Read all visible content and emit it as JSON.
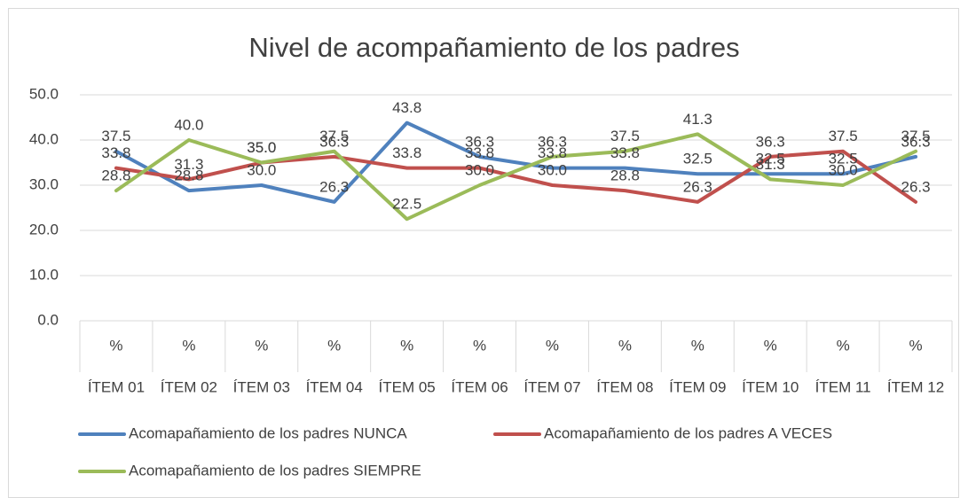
{
  "chart_data": {
    "type": "line",
    "title": "Nivel de acompañamiento de los padres",
    "categories": [
      "ÍTEM 01",
      "ÍTEM 02",
      "ÍTEM 03",
      "ÍTEM 04",
      "ÍTEM 05",
      "ÍTEM 06",
      "ÍTEM 07",
      "ÍTEM 08",
      "ÍTEM 09",
      "ÍTEM 10",
      "ÍTEM 11",
      "ÍTEM 12"
    ],
    "subcategories": [
      "%",
      "%",
      "%",
      "%",
      "%",
      "%",
      "%",
      "%",
      "%",
      "%",
      "%",
      "%"
    ],
    "series": [
      {
        "name": "Acomapañamiento de los padres NUNCA",
        "color": "#4f81bd",
        "values": [
          37.5,
          28.8,
          30,
          26.3,
          43.8,
          36.3,
          33.8,
          33.8,
          32.5,
          32.5,
          32.5,
          36.3
        ],
        "value_labels": [
          "37.5",
          "28.8",
          "30.0",
          "26.3",
          "43.8",
          "36.3",
          "33.8",
          "33.8",
          "32.5",
          "32.5",
          "32.5",
          "36.3"
        ]
      },
      {
        "name": "Acomapañamiento de los padres A VECES",
        "color": "#c0504d",
        "values": [
          33.8,
          31.3,
          35,
          36.3,
          33.8,
          33.8,
          30,
          28.8,
          26.3,
          36.3,
          37.5,
          26.3
        ],
        "value_labels": [
          "33.8",
          "31.3",
          "35.0",
          "36.3",
          "33.8",
          "33.8",
          "30.0",
          "28.8",
          "26.3",
          "36.3",
          "37.5",
          "26.3"
        ]
      },
      {
        "name": "Acomapañamiento de los padres SIEMPRE",
        "color": "#9bbb59",
        "values": [
          28.8,
          40,
          35,
          37.5,
          22.5,
          30,
          36.3,
          37.5,
          41.3,
          31.3,
          30,
          37.5
        ],
        "value_labels": [
          "28.8",
          "40.0",
          "35.0",
          "37.5",
          "22.5",
          "30.0",
          "36.3",
          "37.5",
          "41.3",
          "31.3",
          "30.0",
          "37.5"
        ]
      }
    ],
    "ylim": [
      0,
      50
    ],
    "yticks": [
      {
        "value": 0,
        "label": "0.0"
      },
      {
        "value": 10,
        "label": "10.0"
      },
      {
        "value": 20,
        "label": "20.0"
      },
      {
        "value": 30,
        "label": "30.0"
      },
      {
        "value": 40,
        "label": "40.0"
      },
      {
        "value": 50,
        "label": "50.0"
      }
    ],
    "grid": true
  }
}
